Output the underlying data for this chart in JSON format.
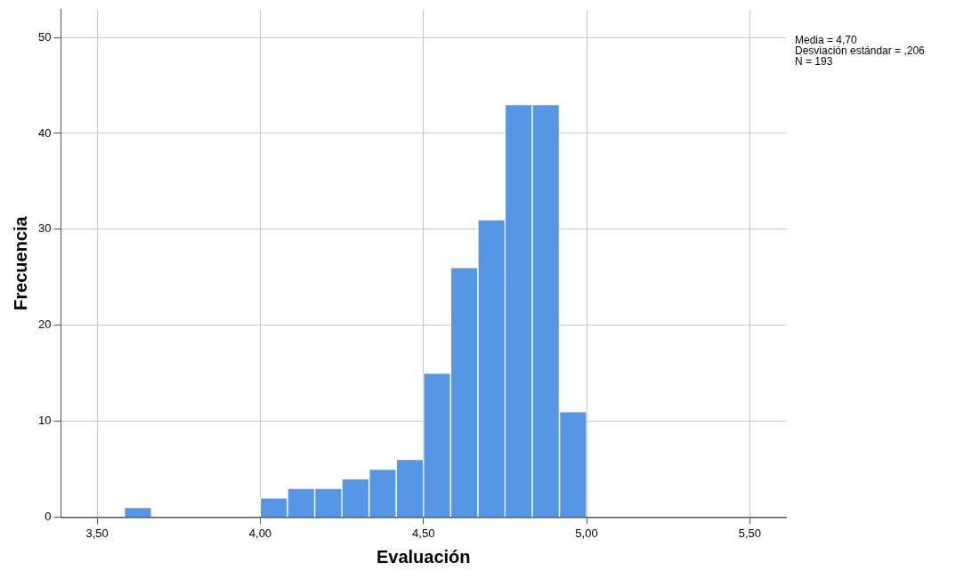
{
  "chart_data": {
    "type": "histogram",
    "xlabel": "Evaluación",
    "ylabel": "Frecuencia",
    "bins": [
      3.583,
      3.667,
      3.75,
      3.833,
      3.917,
      4,
      4.083,
      4.167,
      4.25,
      4.333,
      4.417,
      4.5,
      4.583,
      4.667,
      4.75,
      4.833,
      4.917,
      5
    ],
    "values": [
      1,
      0,
      0,
      0,
      0,
      2,
      3,
      3,
      4,
      5,
      6,
      15,
      26,
      31,
      43,
      43,
      11
    ],
    "color": "#5596e6",
    "xlim": [
      3.389,
      5.611
    ],
    "xticks": [
      {
        "value": 3.5,
        "label": "3,50"
      },
      {
        "value": 4,
        "label": "4,00"
      },
      {
        "value": 4.5,
        "label": "4,50"
      },
      {
        "value": 5,
        "label": "5,00"
      },
      {
        "value": 5.5,
        "label": "5,50"
      }
    ],
    "ylim": [
      0,
      52.9
    ],
    "yticks": [
      0,
      10,
      20,
      30,
      40,
      50
    ],
    "grid": true,
    "legend": false,
    "annotations": [
      "Media = 4,70",
      "Desviación estándar = ,206",
      "N = 193"
    ]
  }
}
